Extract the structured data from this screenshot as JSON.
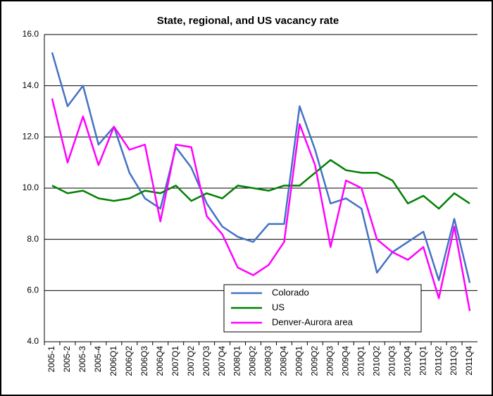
{
  "chart_data": {
    "type": "line",
    "title": "State, regional, and US vacancy rate",
    "categories": [
      "2005-1",
      "2005-2",
      "2005-3",
      "2005-4",
      "2006Q1",
      "2006Q2",
      "2006Q3",
      "2006Q4",
      "2007Q1",
      "2007Q2",
      "2007Q3",
      "2007Q4",
      "2008Q1",
      "2008Q2",
      "2008Q3",
      "2008Q4",
      "2009Q1",
      "2009Q2",
      "2009Q3",
      "2009Q4",
      "2010Q1",
      "2010Q2",
      "2010Q3",
      "2010Q4",
      "2011Q1",
      "2011Q2",
      "2011Q3",
      "2011Q4"
    ],
    "series": [
      {
        "name": "Colorado",
        "color": "#4472c4",
        "values": [
          15.3,
          13.2,
          14.0,
          11.7,
          12.4,
          10.6,
          9.6,
          9.2,
          11.6,
          10.8,
          9.4,
          8.5,
          8.1,
          7.9,
          8.6,
          8.6,
          13.2,
          11.5,
          9.4,
          9.6,
          9.2,
          6.7,
          7.5,
          7.9,
          8.3,
          6.4,
          8.8,
          6.3
        ]
      },
      {
        "name": "US",
        "color": "#008000",
        "values": [
          10.1,
          9.8,
          9.9,
          9.6,
          9.5,
          9.6,
          9.9,
          9.8,
          10.1,
          9.5,
          9.8,
          9.6,
          10.1,
          10.0,
          9.9,
          10.1,
          10.1,
          10.6,
          11.1,
          10.7,
          10.6,
          10.6,
          10.3,
          9.4,
          9.7,
          9.2,
          9.8,
          9.4
        ]
      },
      {
        "name": "Denver-Aurora area",
        "color": "#ff00ff",
        "values": [
          13.5,
          11.0,
          12.8,
          10.9,
          12.4,
          11.5,
          11.7,
          8.7,
          11.7,
          11.6,
          8.9,
          8.2,
          6.9,
          6.6,
          7.0,
          7.9,
          12.5,
          10.9,
          7.7,
          10.3,
          10.0,
          8.0,
          7.5,
          7.2,
          7.7,
          5.7,
          8.5,
          5.2
        ]
      }
    ],
    "ylim": [
      4,
      16
    ],
    "yticks": [
      {
        "value": 4,
        "label": "4.0"
      },
      {
        "value": 6,
        "label": "6.0"
      },
      {
        "value": 8,
        "label": "8.0"
      },
      {
        "value": 10,
        "label": "10.0"
      },
      {
        "value": 12,
        "label": "12.0"
      },
      {
        "value": 14,
        "label": "14.0"
      },
      {
        "value": 16,
        "label": "16.0"
      }
    ],
    "grid": true
  }
}
